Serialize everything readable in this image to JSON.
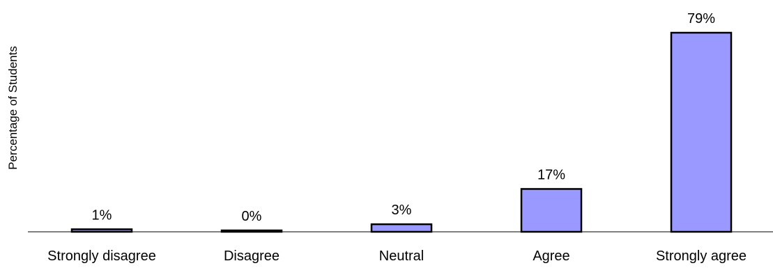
{
  "chart_data": {
    "type": "bar",
    "ylabel": "Percentage of Students",
    "categories": [
      "Strongly disagree",
      "Disagree",
      "Neutral",
      "Agree",
      "Strongly agree"
    ],
    "values": [
      1,
      0,
      3,
      17,
      79
    ],
    "value_labels": [
      "1%",
      "0%",
      "3%",
      "17%",
      "79%"
    ],
    "ylim": [
      0,
      79
    ],
    "grid": false,
    "legend": "none",
    "bar_color": "#9999ff",
    "bar_edge_color": "#000000"
  }
}
